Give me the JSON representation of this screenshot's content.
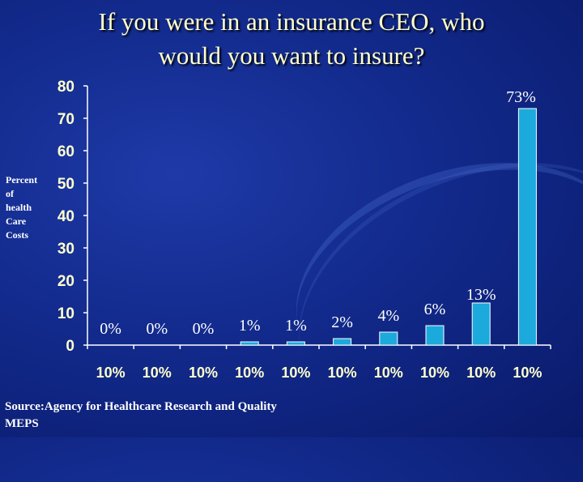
{
  "title_line1": "If you were in an insurance CEO, who",
  "title_line2": "would you want to insure?",
  "ylabel_lines": [
    "Percent",
    "of",
    "health",
    "Care",
    "Costs"
  ],
  "source_line1": "Source:Agency for Healthcare Research and Quality",
  "source_line2": "MEPS",
  "chart_data": {
    "type": "bar",
    "categories": [
      "10%",
      "10%",
      "10%",
      "10%",
      "10%",
      "10%",
      "10%",
      "10%",
      "10%",
      "10%"
    ],
    "values": [
      0,
      0,
      0,
      1,
      1,
      2,
      4,
      6,
      13,
      73
    ],
    "data_labels": [
      "0%",
      "0%",
      "0%",
      "1%",
      "1%",
      "2%",
      "4%",
      "6%",
      "13%",
      "73%"
    ],
    "ylim": [
      0,
      80
    ],
    "yticks": [
      0,
      10,
      20,
      30,
      40,
      50,
      60,
      70,
      80
    ],
    "grid": false,
    "bar_color": "#1ca9dc",
    "bar_edge_color": "#ffffff"
  }
}
